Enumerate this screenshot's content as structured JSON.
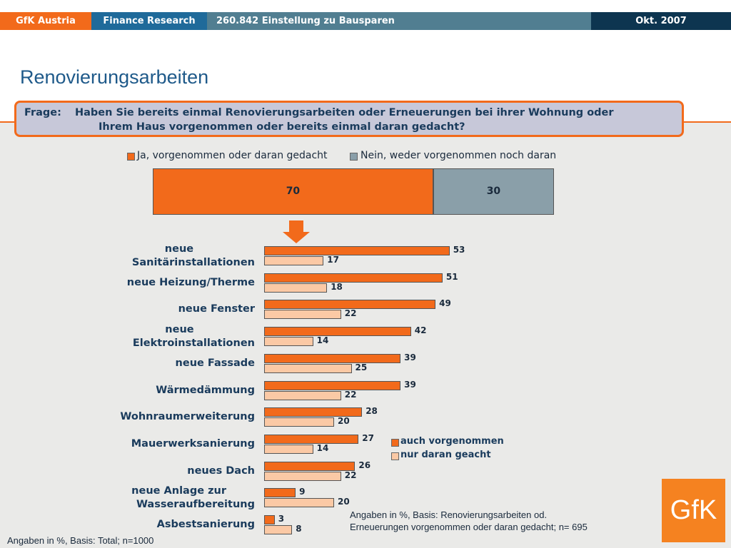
{
  "header": {
    "company": "GfK Austria",
    "division": "Finance Research",
    "study": "260.842 Einstellung zu Bausparen",
    "date": "Okt. 2007"
  },
  "page_title": "Renovierungsarbeiten",
  "question": {
    "label": "Frage:",
    "line1": "Haben Sie bereits einmal Renovierungsarbeiten oder Erneuerungen bei ihrer Wohnung oder",
    "line2": "Ihrem Haus vorgenommen oder bereits einmal daran gedacht?"
  },
  "colors": {
    "orange": "#f26a1b",
    "grey_blue": "#8a9fa9",
    "peach": "#fbc9a5",
    "navy": "#1a3b5c"
  },
  "chart_data": [
    {
      "type": "bar",
      "orientation": "horizontal-stacked",
      "series": [
        {
          "name": "Ja, vorgenommen oder daran gedacht",
          "values": [
            70
          ]
        },
        {
          "name": "Nein, weder vorgenommen noch daran",
          "values": [
            30
          ]
        }
      ],
      "xlim": [
        0,
        100
      ]
    },
    {
      "type": "bar",
      "orientation": "horizontal",
      "categories": [
        "neue Sanitärinstallationen",
        "neue Heizung/Therme",
        "neue Fenster",
        "neue Elektroinstallationen",
        "neue Fassade",
        "Wärmedämmung",
        "Wohnraumerweiterung",
        "Mauerwerksanierung",
        "neues Dach",
        "neue Anlage zur Wasseraufbereitung",
        "Asbestsanierung"
      ],
      "category_lines": [
        [
          "neue",
          "Sanitärinstallationen"
        ],
        [
          "neue Heizung/Therme"
        ],
        [
          "neue Fenster"
        ],
        [
          "neue",
          "Elektroinstallationen"
        ],
        [
          "neue Fassade"
        ],
        [
          "Wärmedämmung"
        ],
        [
          "Wohnraumerweiterung"
        ],
        [
          "Mauerwerksanierung"
        ],
        [
          "neues Dach"
        ],
        [
          "neue Anlage zur",
          "Wasseraufbereitung"
        ],
        [
          "Asbestsanierung"
        ]
      ],
      "series": [
        {
          "name": "auch vorgenommen",
          "values": [
            53,
            51,
            49,
            42,
            39,
            39,
            28,
            27,
            26,
            9,
            3
          ]
        },
        {
          "name": "nur daran geacht",
          "values": [
            17,
            18,
            22,
            14,
            25,
            22,
            20,
            14,
            22,
            20,
            8
          ]
        }
      ],
      "xlim": [
        0,
        100
      ]
    }
  ],
  "notes": {
    "base_total": "Angaben in %, Basis: Total; n=1000",
    "base_sub_line1": "Angaben in %, Basis: Renovierungsarbeiten od.",
    "base_sub_line2": "Erneuerungen vorgenommen oder daran gedacht; n= 695"
  },
  "logo_text": "GfK"
}
